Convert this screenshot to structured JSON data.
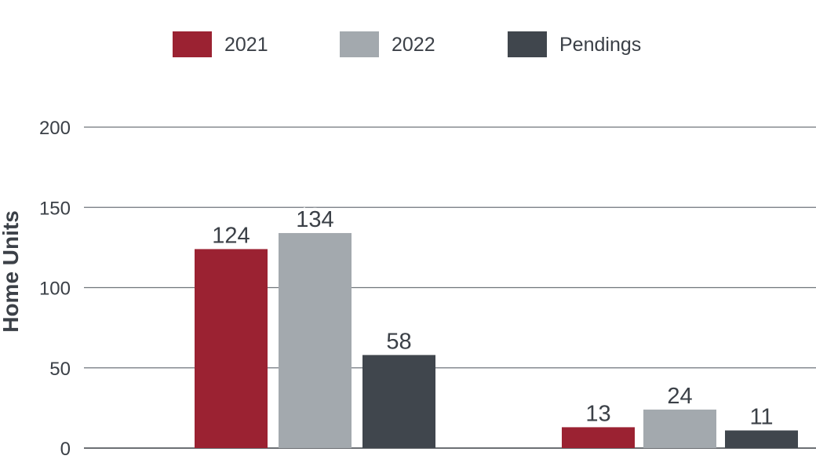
{
  "chart_data": {
    "type": "bar",
    "title": "",
    "xlabel": "",
    "ylabel": "Home Units",
    "ylim": [
      0,
      200
    ],
    "yticks": [
      0,
      50,
      100,
      150,
      200
    ],
    "categories": [
      "",
      ""
    ],
    "grid": true,
    "legend_position": "top",
    "series": [
      {
        "name": "2021",
        "color": "#9b2232",
        "values": [
          124,
          13
        ]
      },
      {
        "name": "2022",
        "color": "#a3a9ae",
        "values": [
          134,
          24
        ]
      },
      {
        "name": "Pendings",
        "color": "#40464d",
        "values": [
          58,
          11
        ]
      }
    ],
    "data_labels": true
  }
}
